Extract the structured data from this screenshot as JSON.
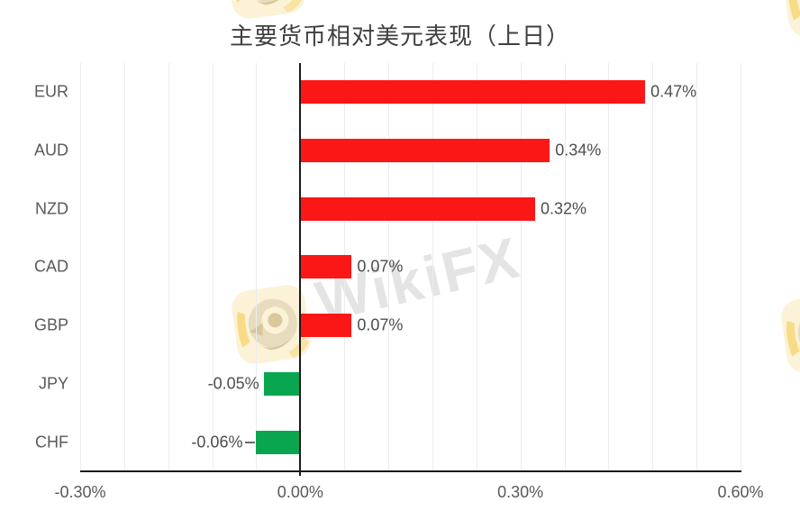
{
  "watermark": {
    "text": "WikiFX",
    "logo": "wikifx-eagle-logo"
  },
  "chart_data": {
    "type": "bar",
    "orientation": "horizontal",
    "title": "主要货币相对美元表现（上日）",
    "categories": [
      "EUR",
      "AUD",
      "NZD",
      "CAD",
      "GBP",
      "JPY",
      "CHF"
    ],
    "values": [
      0.47,
      0.34,
      0.32,
      0.07,
      0.07,
      -0.05,
      -0.06
    ],
    "value_labels": [
      "0.47%",
      "0.34%",
      "0.32%",
      "0.07%",
      "0.07%",
      "-0.05%",
      "-0.06%"
    ],
    "unit": "%",
    "xlabel": "",
    "ylabel": "",
    "xlim": [
      -0.3,
      0.6
    ],
    "x_ticks": [
      {
        "value": -0.3,
        "label": "-0.30%"
      },
      {
        "value": 0.0,
        "label": "0.00%"
      },
      {
        "value": 0.3,
        "label": "0.30%"
      },
      {
        "value": 0.6,
        "label": "0.60%"
      }
    ],
    "gridline_step": 0.06,
    "grid": true,
    "legend": false,
    "label_leader_dash": [
      false,
      false,
      false,
      false,
      false,
      false,
      true
    ],
    "colors": {
      "positive_bar": "#fc1717",
      "negative_bar": "#0aa64f"
    }
  },
  "colors": {
    "background": "#ffffff",
    "axis_line": "#1a1a1a",
    "gridline": "#ececec",
    "category_text": "#595959",
    "value_text": "#4d4d4d",
    "title_text": "#3f3f3f",
    "watermark_text": "#e4e4e4",
    "watermark_logo_bg": "#fbf2d8",
    "watermark_logo_accent": "#f6c844"
  }
}
